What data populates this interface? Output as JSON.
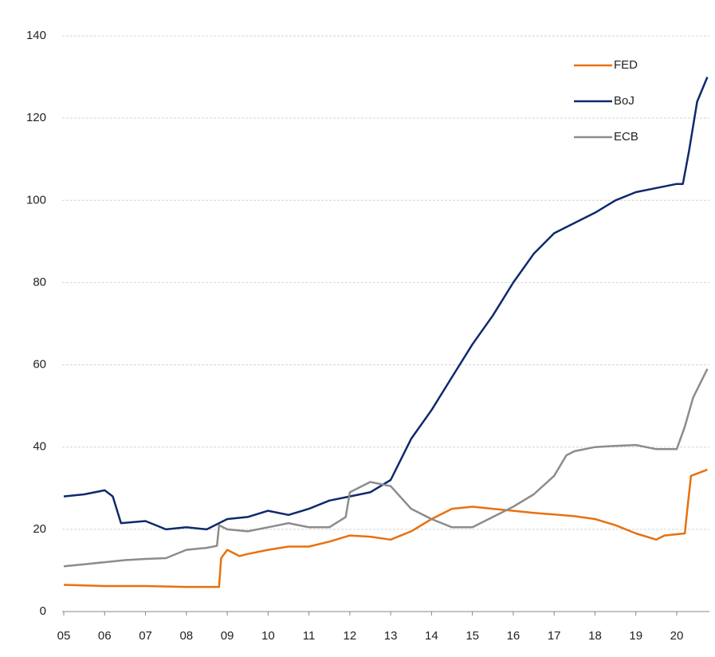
{
  "chart_data": {
    "type": "line",
    "xlim": [
      2005,
      2020.8
    ],
    "xticks": [
      {
        "value": 2005,
        "label": "05"
      },
      {
        "value": 2006,
        "label": "06"
      },
      {
        "value": 2007,
        "label": "07"
      },
      {
        "value": 2008,
        "label": "08"
      },
      {
        "value": 2009,
        "label": "09"
      },
      {
        "value": 2010,
        "label": "10"
      },
      {
        "value": 2011,
        "label": "11"
      },
      {
        "value": 2012,
        "label": "12"
      },
      {
        "value": 2013,
        "label": "13"
      },
      {
        "value": 2014,
        "label": "14"
      },
      {
        "value": 2015,
        "label": "15"
      },
      {
        "value": 2016,
        "label": "16"
      },
      {
        "value": 2017,
        "label": "17"
      },
      {
        "value": 2018,
        "label": "18"
      },
      {
        "value": 2019,
        "label": "19"
      },
      {
        "value": 2020,
        "label": "20"
      }
    ],
    "ylim": [
      0,
      140
    ],
    "yticks": [
      0,
      20,
      40,
      60,
      80,
      100,
      120,
      140
    ],
    "grid": true,
    "legend": "top-right",
    "series": [
      {
        "name": "FED",
        "color": "#e8710f",
        "x": [
          2005,
          2006,
          2007,
          2008,
          2008.8,
          2008.85,
          2009,
          2009.3,
          2009.5,
          2010,
          2010.5,
          2011,
          2011.5,
          2012,
          2012.5,
          2013,
          2013.5,
          2014,
          2014.5,
          2015,
          2015.5,
          2016,
          2016.5,
          2017,
          2017.5,
          2018,
          2018.5,
          2019,
          2019.5,
          2019.7,
          2020.2,
          2020.25,
          2020.35,
          2020.75
        ],
        "values": [
          6.5,
          6.2,
          6.2,
          6,
          6,
          13,
          15,
          13.5,
          14,
          15,
          15.8,
          15.8,
          17,
          18.5,
          18.2,
          17.5,
          19.5,
          22.5,
          25,
          25.5,
          25,
          24.5,
          24,
          23.6,
          23.2,
          22.5,
          21,
          19,
          17.5,
          18.5,
          19,
          24,
          33,
          34.5
        ]
      },
      {
        "name": "BoJ",
        "color": "#0d2a6b",
        "x": [
          2005,
          2005.5,
          2006,
          2006.2,
          2006.4,
          2007,
          2007.5,
          2008,
          2008.5,
          2009,
          2009.5,
          2010,
          2010.5,
          2011,
          2011.5,
          2012,
          2012.5,
          2013,
          2013.5,
          2014,
          2014.5,
          2015,
          2015.5,
          2016,
          2016.5,
          2017,
          2017.5,
          2018,
          2018.5,
          2019,
          2019.5,
          2020,
          2020.15,
          2020.3,
          2020.5,
          2020.75
        ],
        "values": [
          28,
          28.5,
          29.5,
          28,
          21.5,
          22,
          20,
          20.5,
          20,
          22.5,
          23,
          24.5,
          23.5,
          25,
          27,
          28,
          29,
          32,
          42,
          49,
          57,
          65,
          72,
          80,
          87,
          92,
          94.5,
          97,
          100,
          102,
          103,
          104,
          104,
          112,
          124,
          130
        ]
      },
      {
        "name": "ECB",
        "color": "#8c8c8c",
        "x": [
          2005,
          2005.5,
          2006,
          2006.5,
          2007,
          2007.5,
          2008,
          2008.5,
          2008.75,
          2008.8,
          2009,
          2009.5,
          2010,
          2010.5,
          2011,
          2011.5,
          2011.9,
          2012,
          2012.5,
          2013,
          2013.5,
          2014,
          2014.5,
          2015,
          2015.5,
          2016,
          2016.5,
          2017,
          2017.3,
          2017.5,
          2018,
          2018.5,
          2019,
          2019.5,
          2020,
          2020.2,
          2020.4,
          2020.75
        ],
        "values": [
          11,
          11.5,
          12,
          12.5,
          12.8,
          13,
          15,
          15.5,
          16,
          21,
          20,
          19.5,
          20.5,
          21.5,
          20.5,
          20.5,
          23,
          29,
          31.5,
          30.5,
          25,
          22.5,
          20.5,
          20.5,
          23,
          25.5,
          28.5,
          33,
          38,
          39,
          40,
          40.3,
          40.5,
          39.5,
          39.5,
          45,
          52,
          59
        ]
      }
    ]
  }
}
